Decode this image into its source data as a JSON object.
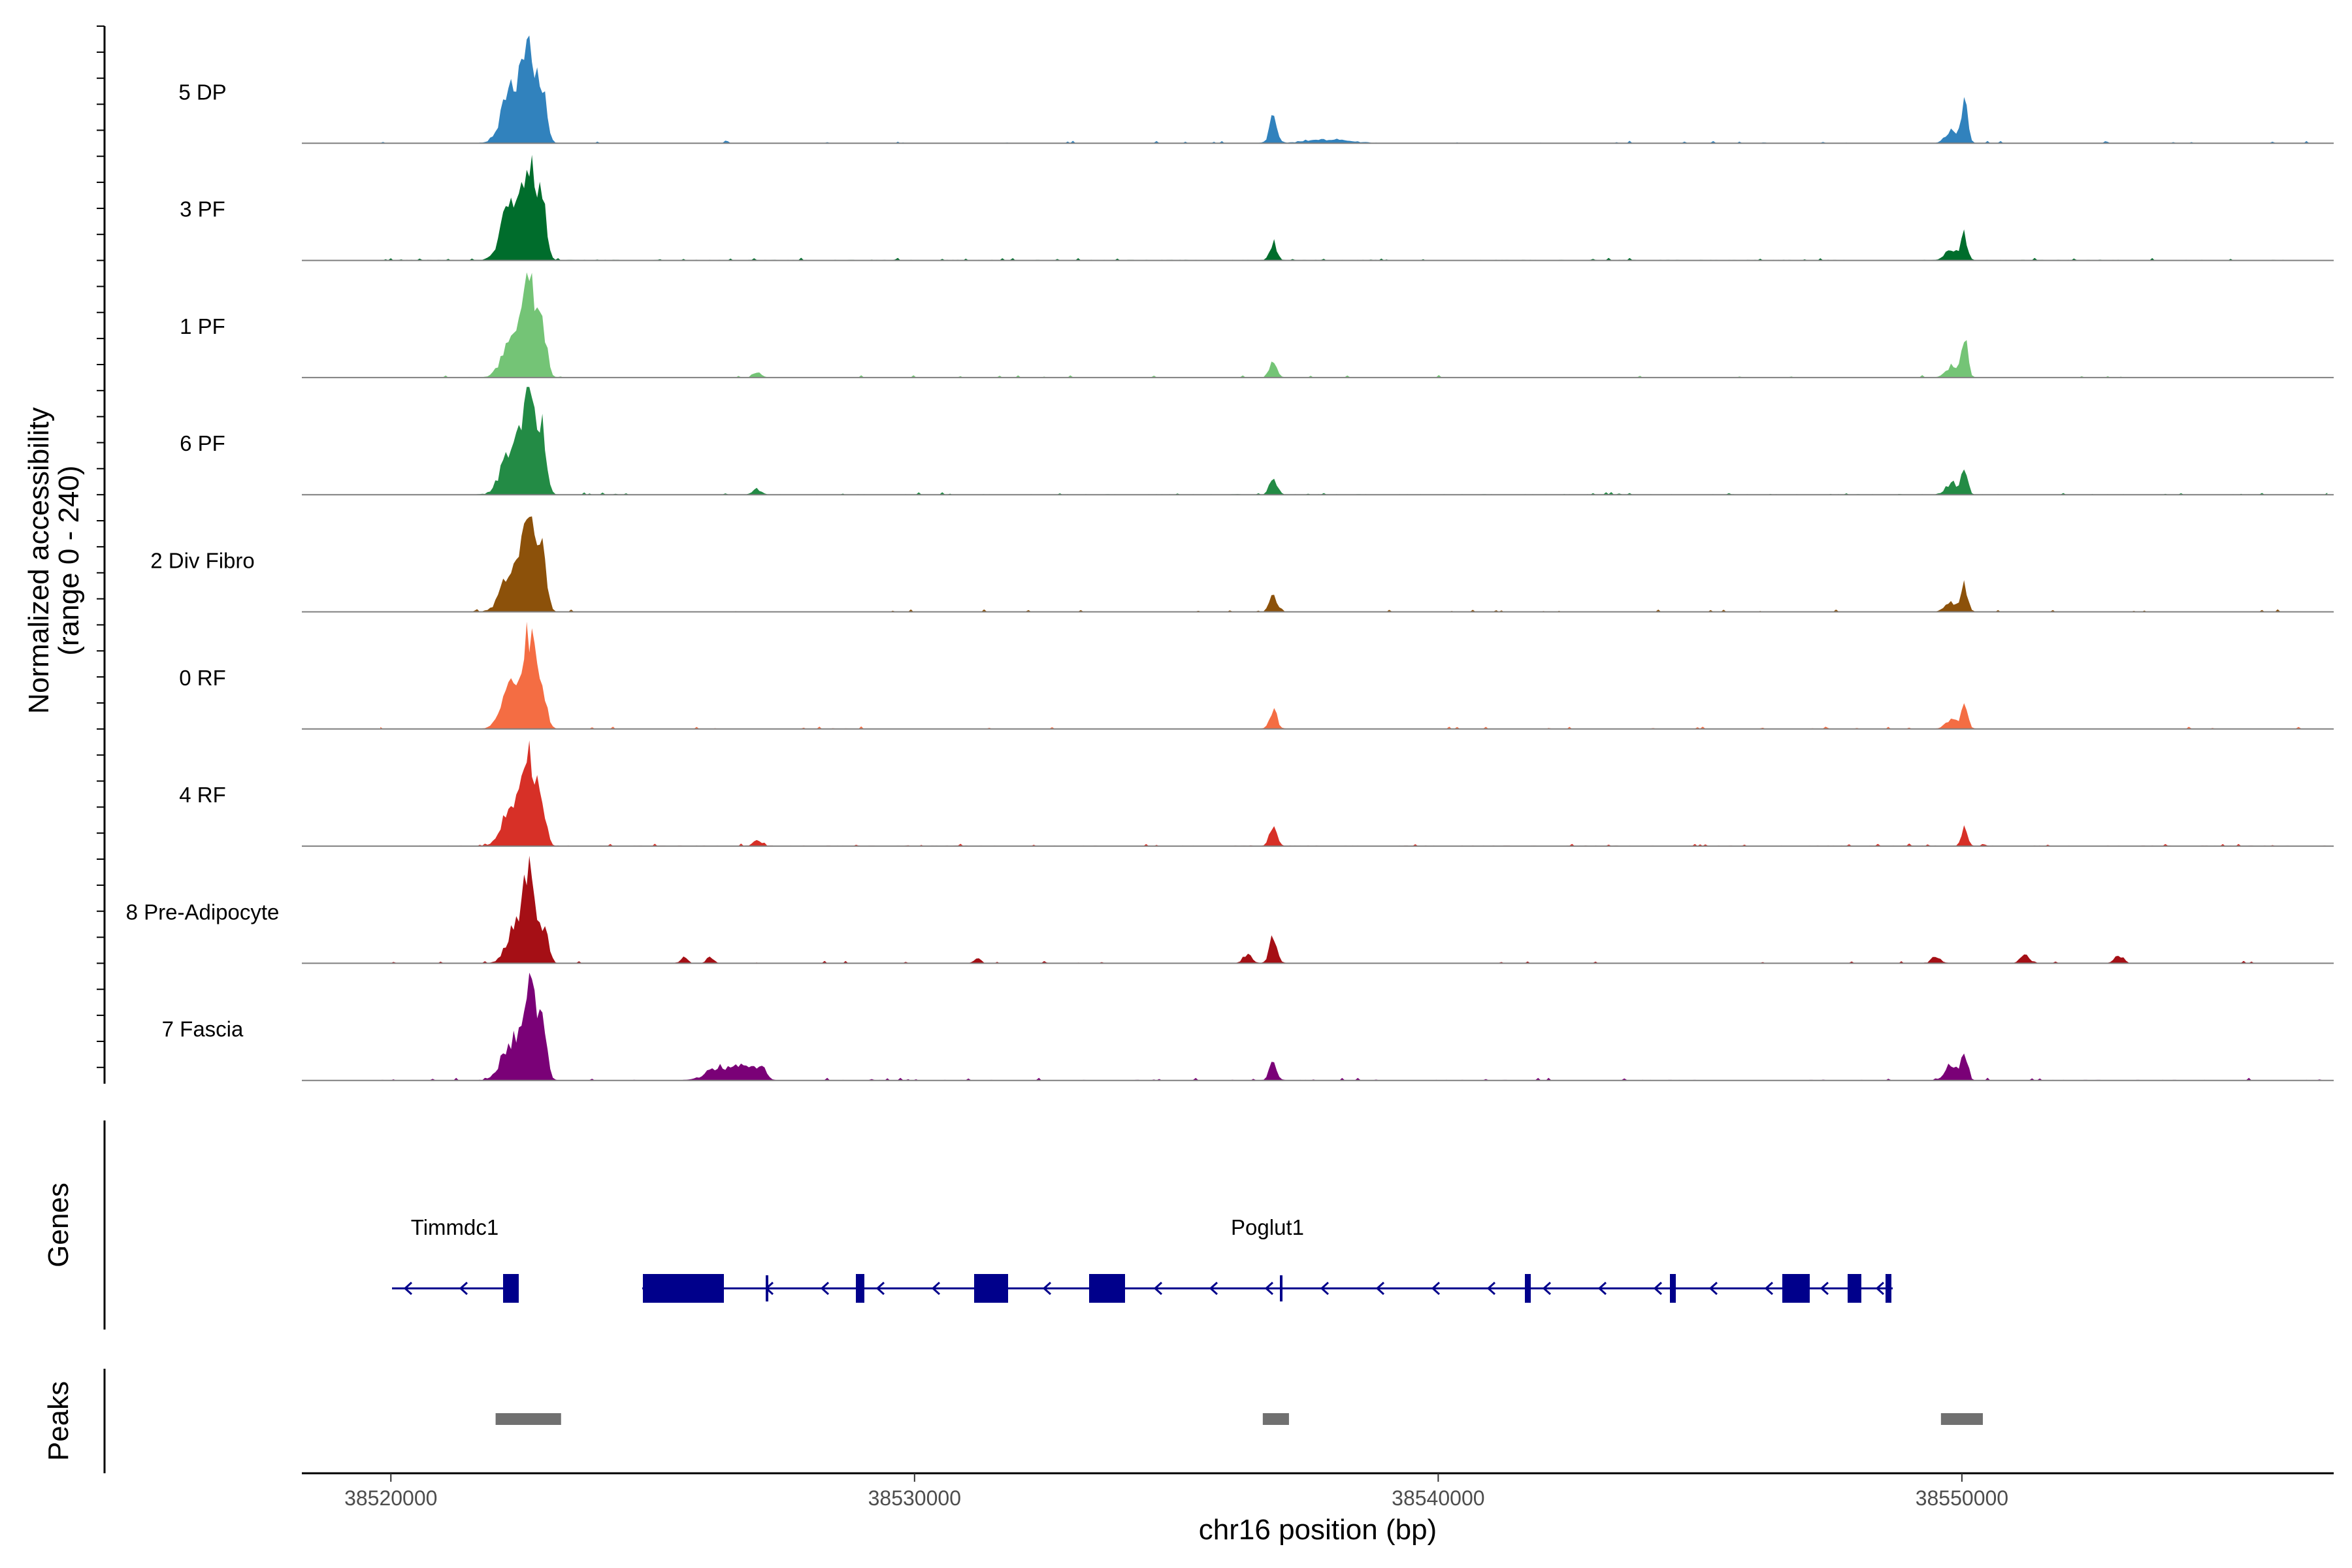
{
  "chart_data": {
    "type": "area",
    "title": "",
    "ylabel_line1": "Normalized accessibility",
    "ylabel_line2": "(range 0 - 240)",
    "ylim": [
      0,
      240
    ],
    "xlabel": "chr16 position (bp)",
    "xlim": [
      38518300,
      38557100
    ],
    "xticks": [
      38520000,
      38530000,
      38540000,
      38550000
    ],
    "xtick_labels": [
      "38520000",
      "38530000",
      "38540000",
      "38550000"
    ],
    "series": [
      {
        "name": "5 DP",
        "color": "#3182BD",
        "peaks": [
          [
            38522300,
            115,
            180
          ],
          [
            38522650,
            200,
            130
          ],
          [
            38522900,
            95,
            80
          ],
          [
            38536850,
            60,
            70
          ],
          [
            38549800,
            30,
            110
          ],
          [
            38550050,
            85,
            60
          ],
          [
            38537900,
            8,
            400
          ]
        ]
      },
      {
        "name": "3 PF",
        "color": "#006D2C",
        "peaks": [
          [
            38522300,
            130,
            180
          ],
          [
            38522650,
            200,
            130
          ],
          [
            38522900,
            110,
            80
          ],
          [
            38536850,
            35,
            70
          ],
          [
            38549800,
            25,
            110
          ],
          [
            38550050,
            55,
            60
          ]
        ]
      },
      {
        "name": "1 PF",
        "color": "#74C476",
        "peaks": [
          [
            38522300,
            75,
            180
          ],
          [
            38522650,
            200,
            130
          ],
          [
            38522900,
            95,
            80
          ],
          [
            38536850,
            35,
            70
          ],
          [
            38549800,
            25,
            110
          ],
          [
            38550050,
            85,
            60
          ],
          [
            38527000,
            10,
            80
          ]
        ]
      },
      {
        "name": "6 PF",
        "color": "#238B45",
        "peaks": [
          [
            38522300,
            105,
            180
          ],
          [
            38522650,
            200,
            130
          ],
          [
            38522900,
            120,
            80
          ],
          [
            38536850,
            40,
            70
          ],
          [
            38549800,
            25,
            110
          ],
          [
            38550050,
            55,
            60
          ],
          [
            38527000,
            12,
            80
          ]
        ]
      },
      {
        "name": "2 Div Fibro",
        "color": "#8C510A",
        "peaks": [
          [
            38522300,
            90,
            180
          ],
          [
            38522650,
            210,
            130
          ],
          [
            38522900,
            110,
            80
          ],
          [
            38536850,
            35,
            70
          ],
          [
            38549800,
            20,
            110
          ],
          [
            38550050,
            55,
            60
          ]
        ]
      },
      {
        "name": "0 RF",
        "color": "#F46D43",
        "peaks": [
          [
            38522300,
            90,
            180
          ],
          [
            38522650,
            200,
            130
          ],
          [
            38522900,
            75,
            80
          ],
          [
            38536850,
            45,
            70
          ],
          [
            38549800,
            20,
            110
          ],
          [
            38550050,
            60,
            60
          ]
        ]
      },
      {
        "name": "4 RF",
        "color": "#D73027",
        "peaks": [
          [
            38522300,
            85,
            180
          ],
          [
            38522650,
            200,
            130
          ],
          [
            38522900,
            60,
            80
          ],
          [
            38536850,
            45,
            70
          ],
          [
            38550050,
            40,
            60
          ],
          [
            38527000,
            12,
            80
          ]
        ]
      },
      {
        "name": "8 Pre-Adipocyte",
        "color": "#A50F15",
        "peaks": [
          [
            38522350,
            75,
            150
          ],
          [
            38522650,
            210,
            120
          ],
          [
            38522950,
            75,
            70
          ],
          [
            38536850,
            65,
            70
          ],
          [
            38536350,
            20,
            80
          ],
          [
            38525600,
            15,
            60
          ],
          [
            38526100,
            15,
            60
          ],
          [
            38531200,
            12,
            60
          ],
          [
            38549500,
            15,
            80
          ],
          [
            38551200,
            18,
            80
          ],
          [
            38553000,
            18,
            80
          ]
        ]
      },
      {
        "name": "7 Fascia",
        "color": "#7A0177",
        "peaks": [
          [
            38522300,
            85,
            180
          ],
          [
            38522650,
            200,
            130
          ],
          [
            38522900,
            110,
            80
          ],
          [
            38536850,
            40,
            70
          ],
          [
            38549800,
            35,
            110
          ],
          [
            38550050,
            60,
            60
          ],
          [
            38526300,
            30,
            250
          ],
          [
            38526800,
            35,
            150
          ],
          [
            38527100,
            30,
            80
          ]
        ]
      }
    ],
    "genes": [
      {
        "name": "Timmdc1",
        "strand": "-"
      },
      {
        "name": "Poglut1",
        "strand": "-"
      }
    ],
    "gene_track_label": "Genes",
    "gene_color": "#00008B",
    "peaks_track_label": "Peaks",
    "peak_color": "#707070",
    "peak_regions": [
      [
        38522000,
        38523250
      ],
      [
        38536650,
        38537150
      ],
      [
        38549600,
        38550400
      ]
    ]
  }
}
